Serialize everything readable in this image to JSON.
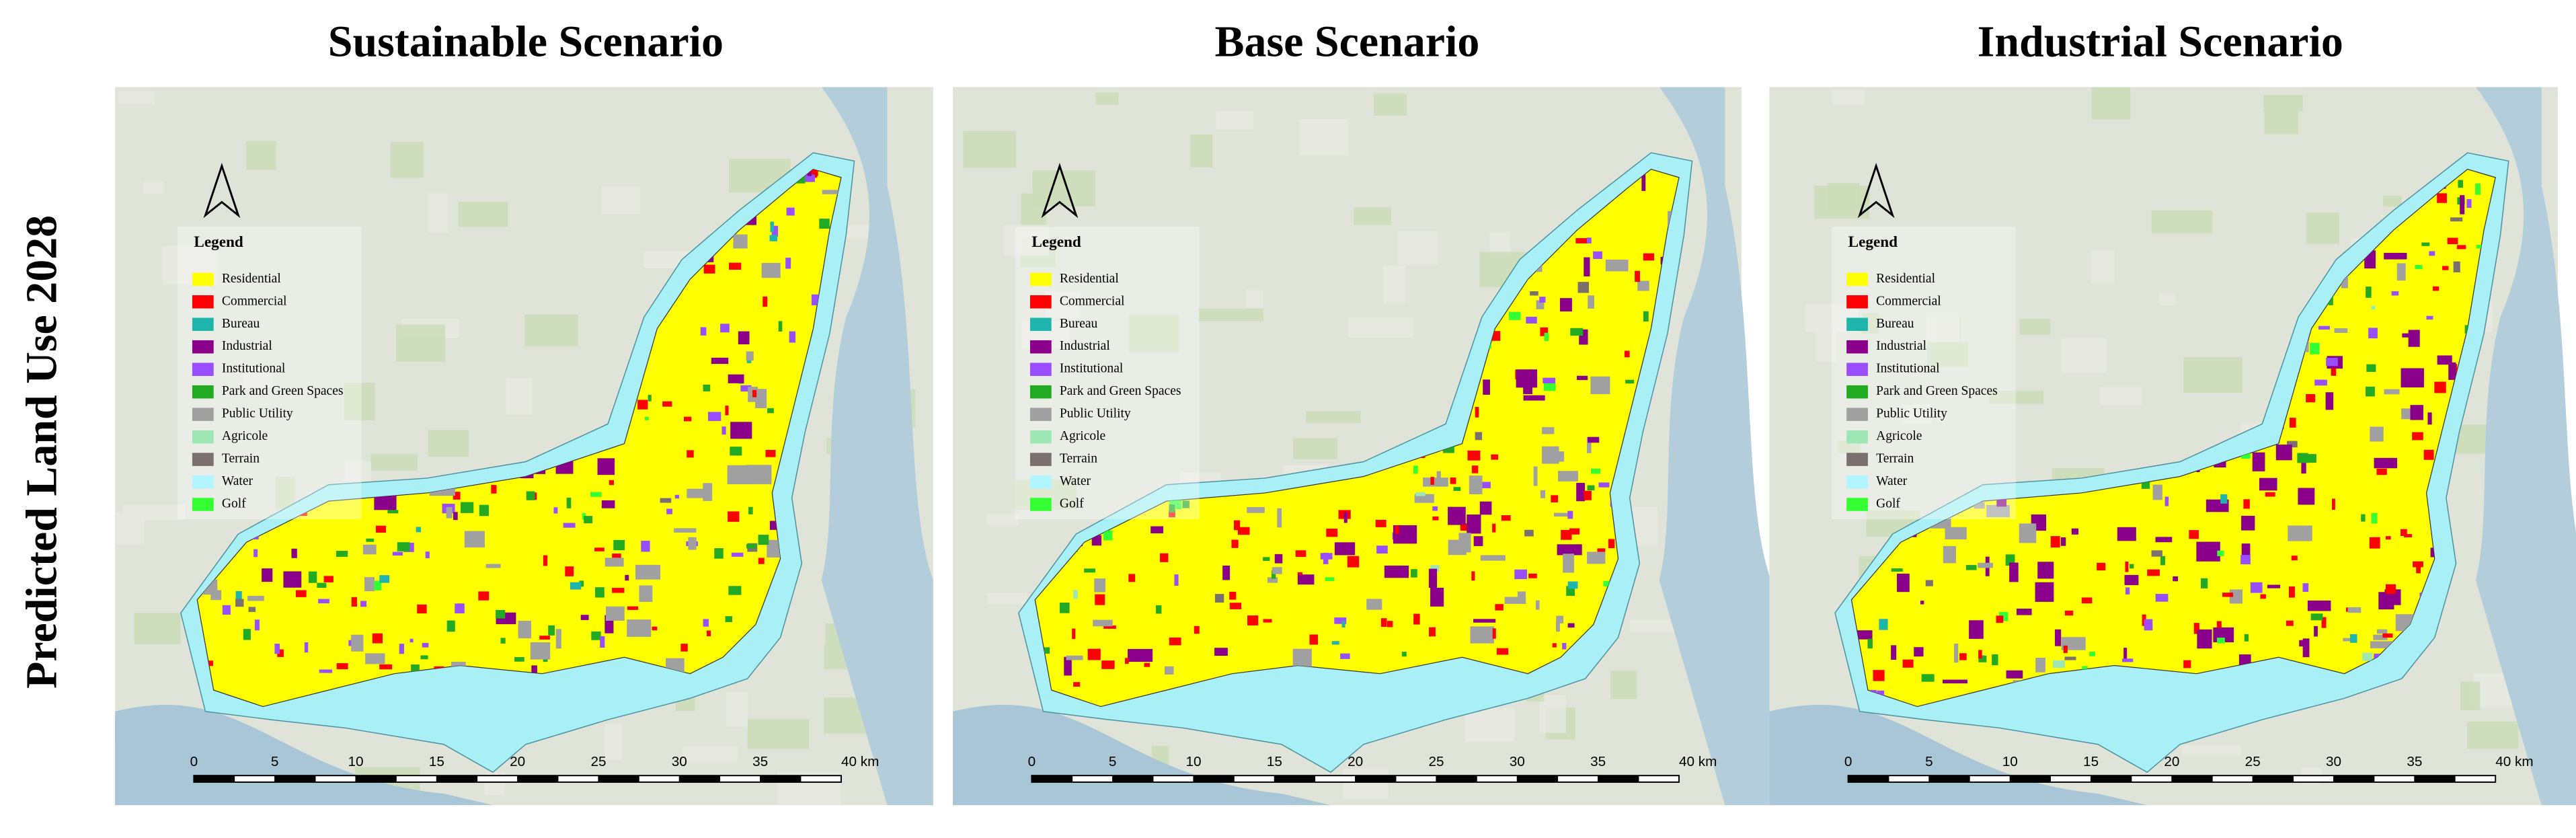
{
  "row_label": "Predicted Land Use 2028",
  "panels": [
    {
      "title": "Sustainable Scenario"
    },
    {
      "title": "Base Scenario"
    },
    {
      "title": "Industrial Scenario"
    }
  ],
  "legend": {
    "title": "Legend",
    "items": [
      {
        "label": "Residential",
        "color": "#ffff00"
      },
      {
        "label": "Commercial",
        "color": "#ff0000"
      },
      {
        "label": "Bureau",
        "color": "#1fb5ad"
      },
      {
        "label": "Industrial",
        "color": "#8b008b"
      },
      {
        "label": "Institutional",
        "color": "#9a4dff"
      },
      {
        "label": "Park and Green Spaces",
        "color": "#22aa22"
      },
      {
        "label": "Public Utility",
        "color": "#a0a0a0"
      },
      {
        "label": "Agricole",
        "color": "#9fe6b5"
      },
      {
        "label": "Terrain",
        "color": "#7a7070"
      },
      {
        "label": "Water",
        "color": "#b0f5ff"
      },
      {
        "label": "Golf",
        "color": "#33ff33"
      }
    ]
  },
  "scale_bar": {
    "labels": [
      "0",
      "5",
      "10",
      "15",
      "20",
      "25",
      "30",
      "35",
      "40 km"
    ]
  }
}
